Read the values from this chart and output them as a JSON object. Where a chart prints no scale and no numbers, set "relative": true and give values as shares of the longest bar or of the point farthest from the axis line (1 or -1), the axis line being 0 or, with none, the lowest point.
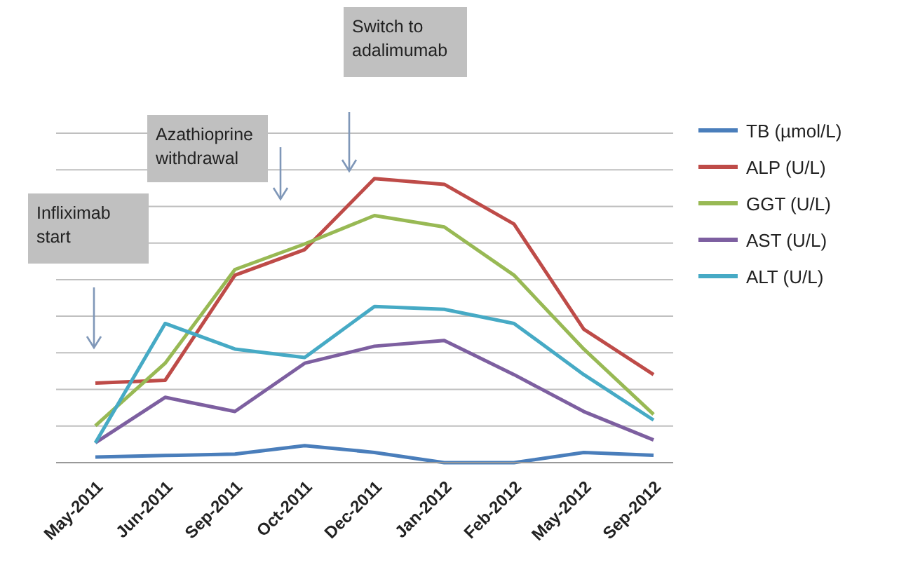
{
  "chart_data": {
    "type": "line",
    "relative": true,
    "categories": [
      "May-2011",
      "Jun-2011",
      "Sep-2011",
      "Oct-2011",
      "Dec-2011",
      "Jan-2012",
      "Feb-2012",
      "May-2012",
      "Sep-2012"
    ],
    "series": [
      {
        "name": "TB (µmol/L)",
        "color": "#4a7ebb",
        "values": [
          0.02,
          0.025,
          0.03,
          0.06,
          0.036,
          0,
          0,
          0.036,
          0.026
        ]
      },
      {
        "name": "ALP (U/L)",
        "color": "#be4b48",
        "values": [
          0.28,
          0.29,
          0.66,
          0.75,
          1,
          0.98,
          0.84,
          0.47,
          0.31
        ]
      },
      {
        "name": "GGT (U/L)",
        "color": "#98b954",
        "values": [
          0.13,
          0.35,
          0.68,
          0.77,
          0.87,
          0.83,
          0.66,
          0.4,
          0.17
        ]
      },
      {
        "name": "AST (U/L)",
        "color": "#7d5fa0",
        "values": [
          0.07,
          0.23,
          0.18,
          0.35,
          0.41,
          0.43,
          0.31,
          0.18,
          0.08
        ]
      },
      {
        "name": "ALT (U/L)",
        "color": "#46aac5",
        "values": [
          0.07,
          0.49,
          0.4,
          0.37,
          0.55,
          0.54,
          0.49,
          0.31,
          0.15
        ]
      }
    ],
    "annotations": [
      "Infliximab start",
      "Azathioprine withdrawal",
      "Switch to adalimumab"
    ],
    "grid": "y",
    "legend": "right",
    "marker": "none",
    "line_style": "solid"
  }
}
